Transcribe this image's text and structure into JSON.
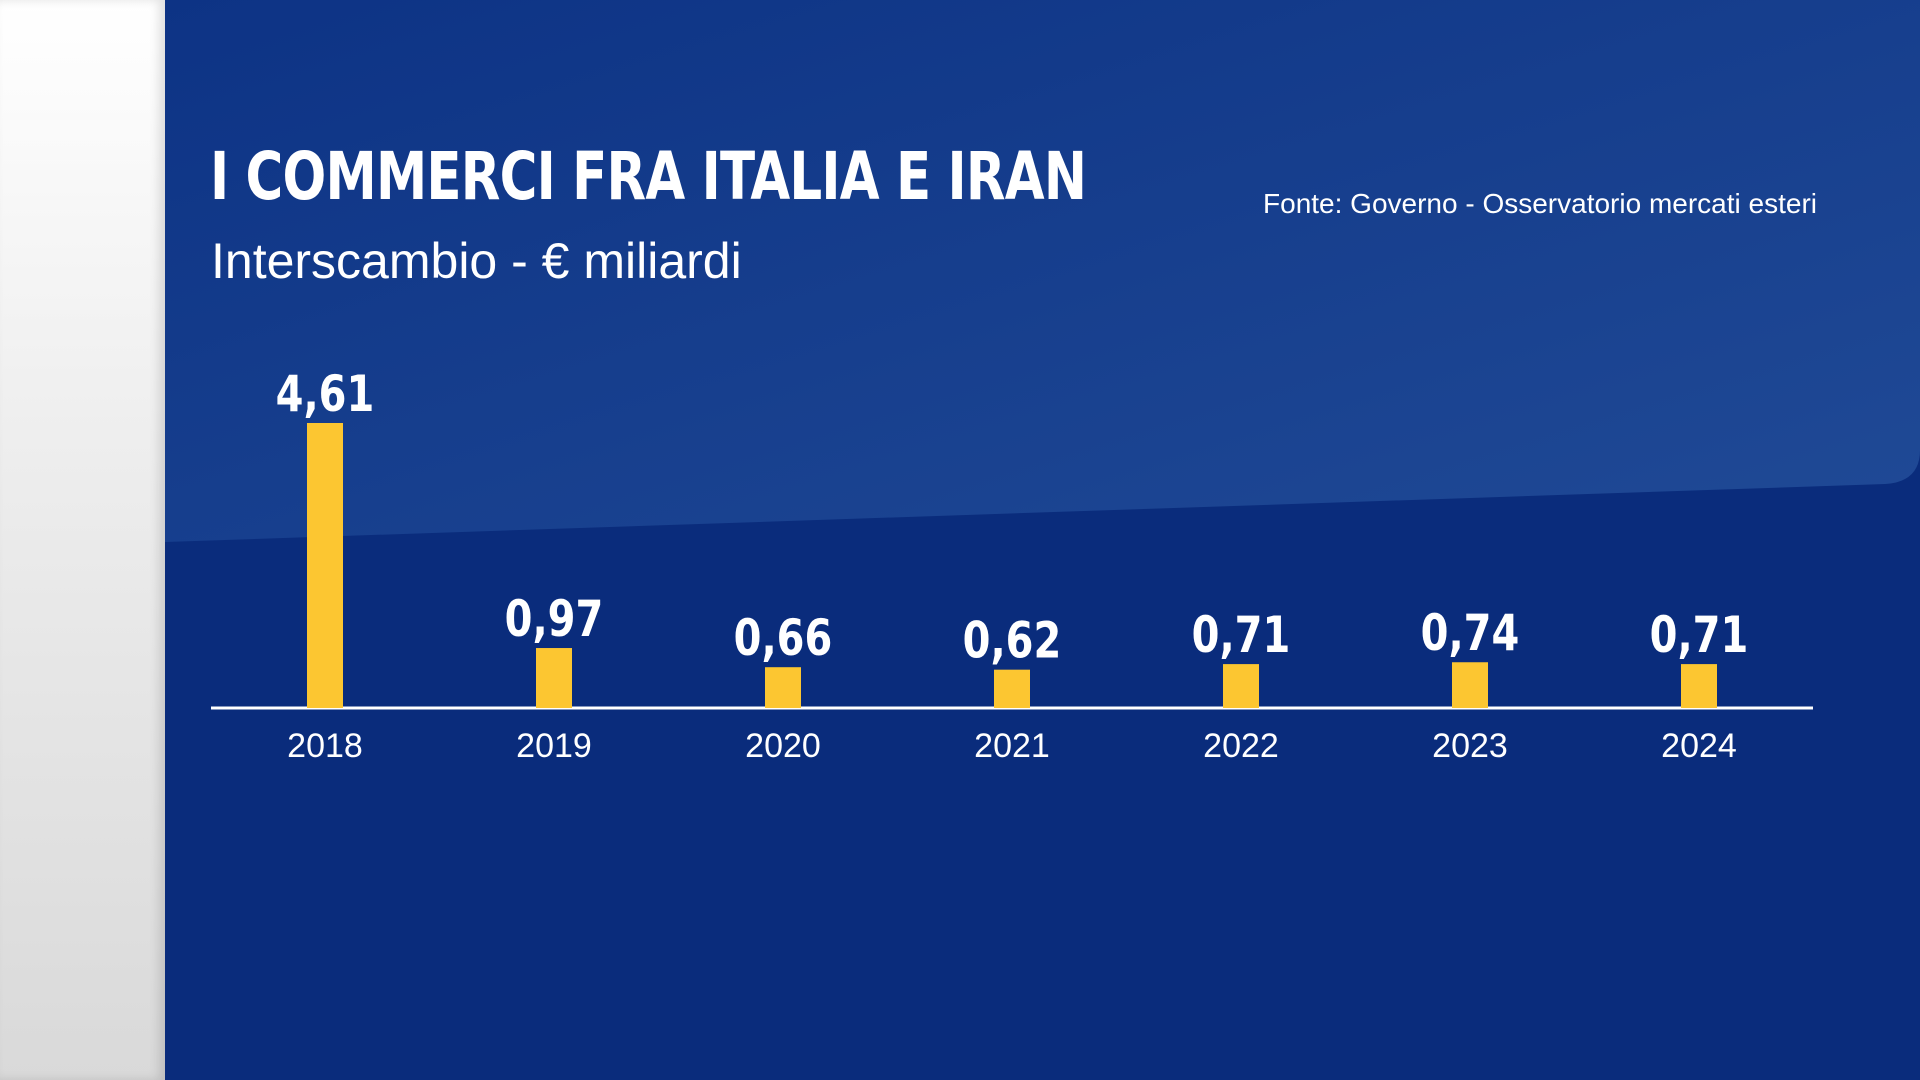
{
  "colors": {
    "background": "#0a2c7c",
    "bar": "#fcc631",
    "text": "#ffffff",
    "left_strip": "#e6e6e6"
  },
  "header": {
    "title": "I COMMERCI FRA ITALIA E IRAN",
    "subtitle": "Interscambio - € miliardi",
    "source": "Fonte: Governo - Osservatorio mercati esteri"
  },
  "chart_data": {
    "type": "bar",
    "title": "I COMMERCI FRA ITALIA E IRAN",
    "subtitle": "Interscambio - € miliardi",
    "categories": [
      "2018",
      "2019",
      "2020",
      "2021",
      "2022",
      "2023",
      "2024"
    ],
    "values": [
      4.61,
      0.97,
      0.66,
      0.62,
      0.71,
      0.74,
      0.71
    ],
    "value_labels": [
      "4,61",
      "0,97",
      "0,66",
      "0,62",
      "0,71",
      "0,74",
      "0,71"
    ],
    "xlabel": "",
    "ylabel": "",
    "ylim": [
      0,
      4.61
    ],
    "grid": false,
    "legend": "none"
  }
}
